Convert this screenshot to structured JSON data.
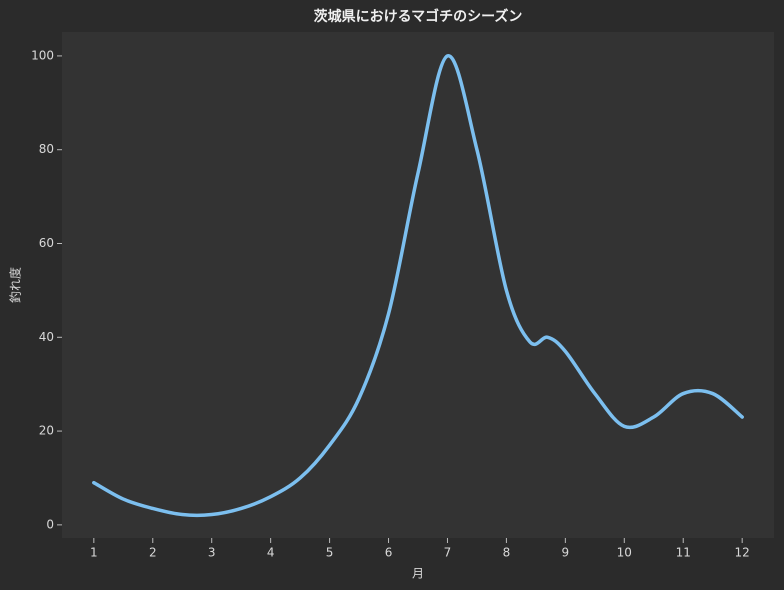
{
  "chart_data": {
    "type": "line",
    "title": "茨城県におけるマゴチのシーズン",
    "x_label": "月",
    "y_label": "釣れ度",
    "x": [
      1,
      1.5,
      2,
      2.5,
      3,
      3.5,
      4,
      4.5,
      5,
      5.5,
      6,
      6.5,
      7,
      7.5,
      8,
      8.4,
      8.7,
      9,
      9.5,
      10,
      10.5,
      11,
      11.5,
      12
    ],
    "series": [
      {
        "color": "#7cbfef",
        "values": [
          9,
          5.5,
          3.5,
          2.2,
          2.2,
          3.5,
          6,
          10,
          17,
          27,
          45,
          75,
          100,
          80,
          50,
          39,
          40,
          37,
          28,
          21,
          23,
          28,
          28,
          23
        ]
      }
    ],
    "xlim": [
      0.46,
      12.54
    ],
    "ylim": [
      -2.8,
      105.1
    ],
    "xticks": [
      1,
      2,
      3,
      4,
      5,
      6,
      7,
      8,
      9,
      10,
      11,
      12
    ],
    "yticks": [
      0,
      20,
      40,
      60,
      80,
      100
    ],
    "smooth": true
  }
}
